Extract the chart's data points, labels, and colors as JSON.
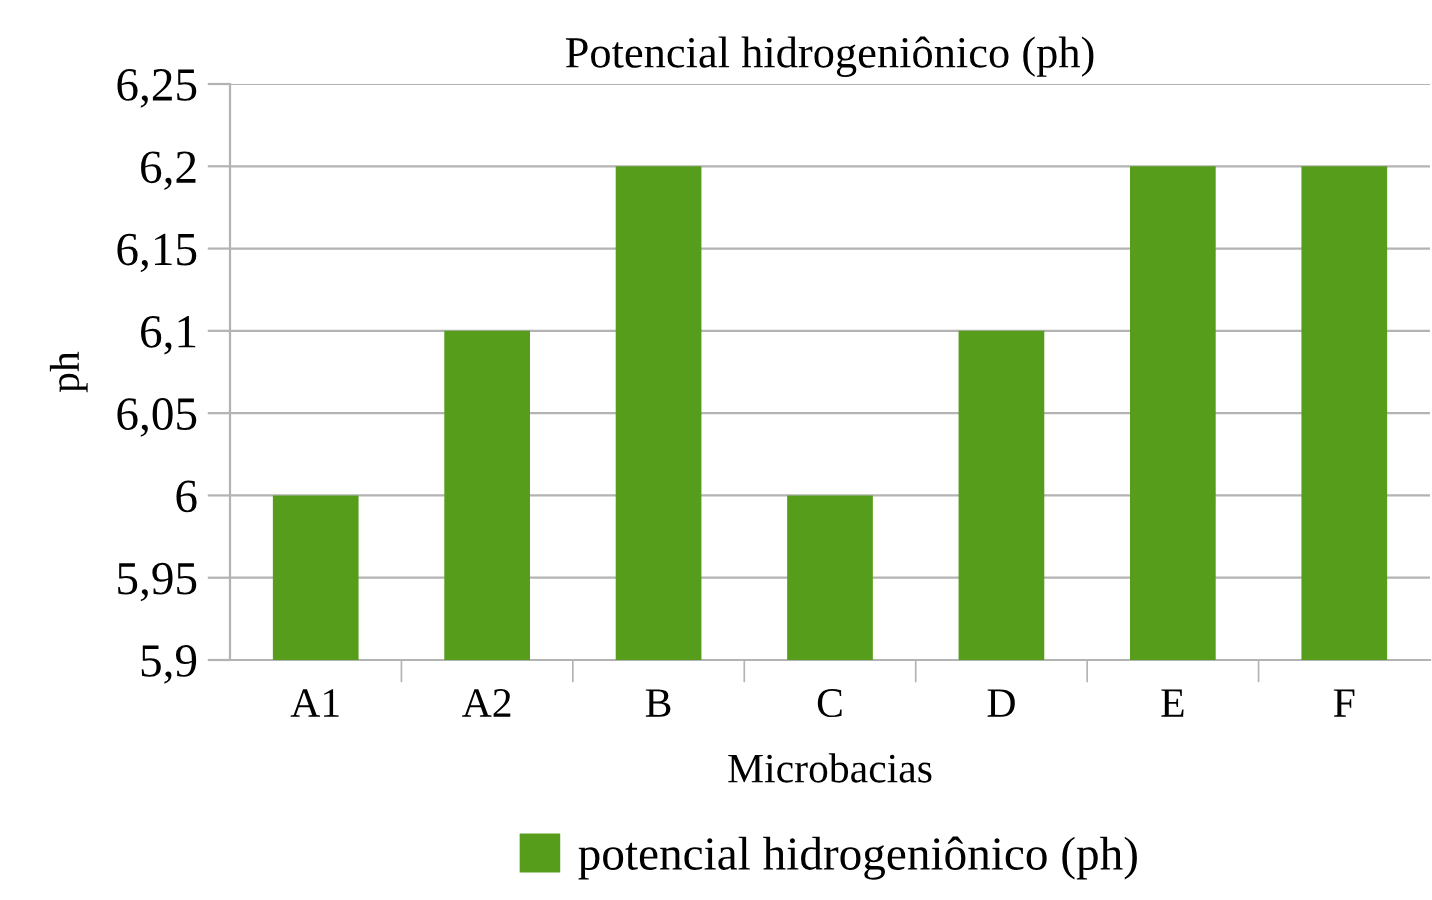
{
  "chart_data": {
    "type": "bar",
    "title": "Potencial hidrogeniônico (ph)",
    "xlabel": "Microbacias",
    "ylabel": "ph",
    "categories": [
      "A1",
      "A2",
      "B",
      "C",
      "D",
      "E",
      "F"
    ],
    "series": [
      {
        "name": "potencial hidrogeniônico (ph)",
        "color": "#579d1c",
        "values": [
          6,
          6.1,
          6.2,
          6,
          6.1,
          6.2,
          6.2
        ]
      }
    ],
    "ylim": [
      5.9,
      6.25
    ],
    "yticks": [
      {
        "value": 5.9,
        "label": "5,9"
      },
      {
        "value": 5.95,
        "label": "5,95"
      },
      {
        "value": 6,
        "label": "6"
      },
      {
        "value": 6.05,
        "label": "6,05"
      },
      {
        "value": 6.1,
        "label": "6,1"
      },
      {
        "value": 6.15,
        "label": "6,15"
      },
      {
        "value": 6.2,
        "label": "6,2"
      },
      {
        "value": 6.25,
        "label": "6,25"
      }
    ],
    "grid": "y",
    "legend": "bottom"
  }
}
